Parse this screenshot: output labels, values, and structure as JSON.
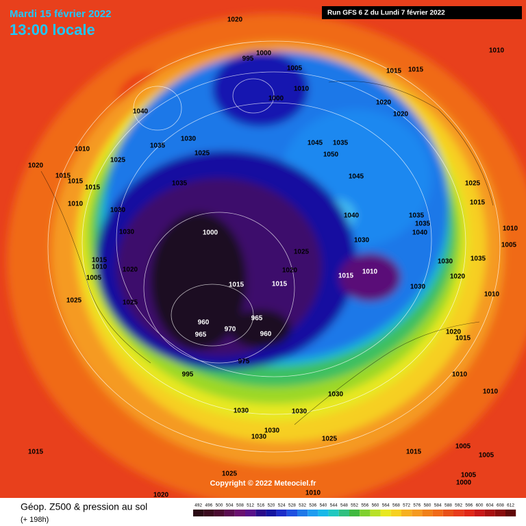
{
  "header": {
    "date": "Mardi 15 février 2022",
    "time": "13:00 locale",
    "run": "Run GFS 6 Z du Lundi 7 février 2022"
  },
  "footer": {
    "title": "Géop. Z500 & pression au sol",
    "subtitle": "(+ 198h)",
    "copyright": "Copyright © 2022 Meteociel.fr"
  },
  "scale": {
    "labels": [
      492,
      496,
      500,
      504,
      508,
      512,
      516,
      520,
      524,
      528,
      532,
      536,
      540,
      544,
      548,
      552,
      556,
      560,
      564,
      568,
      572,
      576,
      580,
      584,
      588,
      592,
      596,
      600,
      604,
      608,
      612
    ]
  },
  "pressure_labels": [
    "1020",
    "1010",
    "1000",
    "995",
    "1005",
    "1015",
    "1015",
    "1010",
    "1040",
    "1000",
    "1020",
    "1020",
    "1035",
    "1030",
    "1025",
    "1010",
    "1045",
    "1035",
    "1050",
    "1025",
    "1020",
    "1015",
    "1015",
    "1015",
    "1035",
    "1045",
    "1025",
    "1010",
    "1030",
    "1015",
    "1035",
    "1040",
    "1035",
    "1040",
    "1030",
    "1000",
    "1010",
    "1030",
    "1005",
    "1025",
    "1015",
    "1010",
    "1020",
    "1030",
    "1035",
    "1015",
    "1010",
    "1020",
    "1005",
    "1015",
    "1015",
    "1020",
    "1030",
    "1010",
    "1025",
    "1025",
    "960",
    "965",
    "965",
    "970",
    "960",
    "1020",
    "1015",
    "975",
    "995",
    "1010",
    "1010",
    "1030",
    "1030",
    "1030",
    "1030",
    "1030",
    "1025",
    "1015",
    "1015",
    "1005",
    "1005",
    "1025",
    "1005",
    "1000",
    "1010",
    "1020"
  ]
}
